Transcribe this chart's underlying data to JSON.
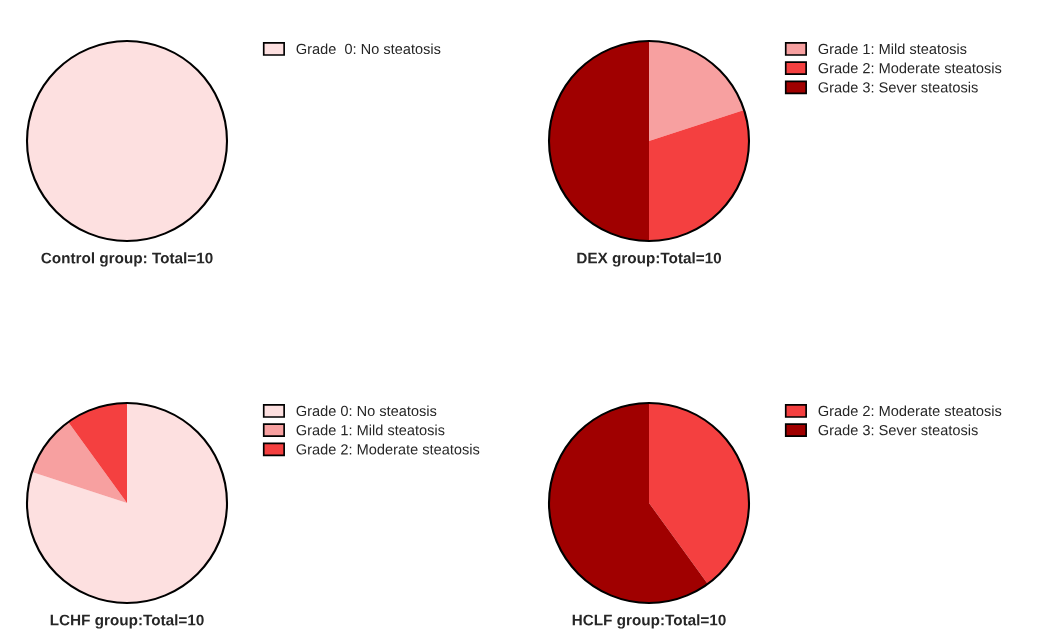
{
  "chart_data": [
    {
      "type": "pie",
      "title": "Control group: Total=10",
      "categories": [
        "Grade  0: No steatosis"
      ],
      "values": [
        100
      ],
      "colors": [
        "#fde0e0"
      ],
      "legend": "top right"
    },
    {
      "type": "pie",
      "title": "DEX group:Total=10",
      "categories": [
        "Grade 1: Mild steatosis",
        "Grade 2: Moderate steatosis",
        "Grade 3: Sever steatosis"
      ],
      "values": [
        20,
        30,
        50
      ],
      "colors": [
        "#f7a0a0",
        "#f44040",
        "#a00000"
      ],
      "legend": "top right"
    },
    {
      "type": "pie",
      "title": "LCHF group:Total=10",
      "categories": [
        "Grade 0: No steatosis",
        "Grade 1: Mild steatosis",
        "Grade 2: Moderate steatosis"
      ],
      "values": [
        80,
        10,
        10
      ],
      "colors": [
        "#fde0e0",
        "#f7a0a0",
        "#f44040"
      ],
      "legend": "top right"
    },
    {
      "type": "pie",
      "title": "HCLF group:Total=10",
      "categories": [
        "Grade 2: Moderate steatosis",
        "Grade 3: Sever steatosis"
      ],
      "values": [
        40,
        60
      ],
      "colors": [
        "#f44040",
        "#a00000"
      ],
      "legend": "top right"
    }
  ]
}
